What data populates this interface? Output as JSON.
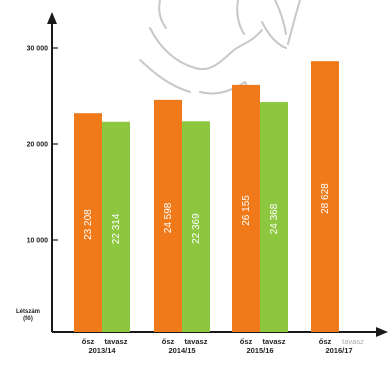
{
  "colors": {
    "osz": "#f07a1a",
    "tavasz": "#8dc63f",
    "axis": "#1a1a1a",
    "label": "#222222",
    "muted": "#a9a9a9",
    "sketch": "#c8c8c8"
  },
  "chart_data": {
    "type": "bar",
    "title": "",
    "xlabel": "",
    "ylabel": [
      "Létszám",
      "(fő)"
    ],
    "ylim": [
      0,
      34000
    ],
    "yticks": [
      {
        "value": 10000,
        "label": "10 000"
      },
      {
        "value": 20000,
        "label": "20 000"
      },
      {
        "value": 30000,
        "label": "30 000"
      }
    ],
    "season_labels": {
      "osz": "ősz",
      "tavasz": "tavasz"
    },
    "categories": [
      "2013/14",
      "2014/15",
      "2015/16",
      "2016/17"
    ],
    "series": [
      {
        "name": "ősz",
        "key": "osz",
        "values": [
          23208,
          24598,
          26155,
          28628
        ],
        "labels": [
          "23 208",
          "24 598",
          "26 155",
          "28 628"
        ]
      },
      {
        "name": "tavasz",
        "key": "tavasz",
        "values": [
          22314,
          22369,
          24368,
          null
        ],
        "labels": [
          "22 314",
          "22 369",
          "24 368",
          ""
        ]
      }
    ],
    "muted_season": {
      "category_index": 3,
      "series_key": "tavasz"
    },
    "grid": false,
    "legend": "none"
  }
}
